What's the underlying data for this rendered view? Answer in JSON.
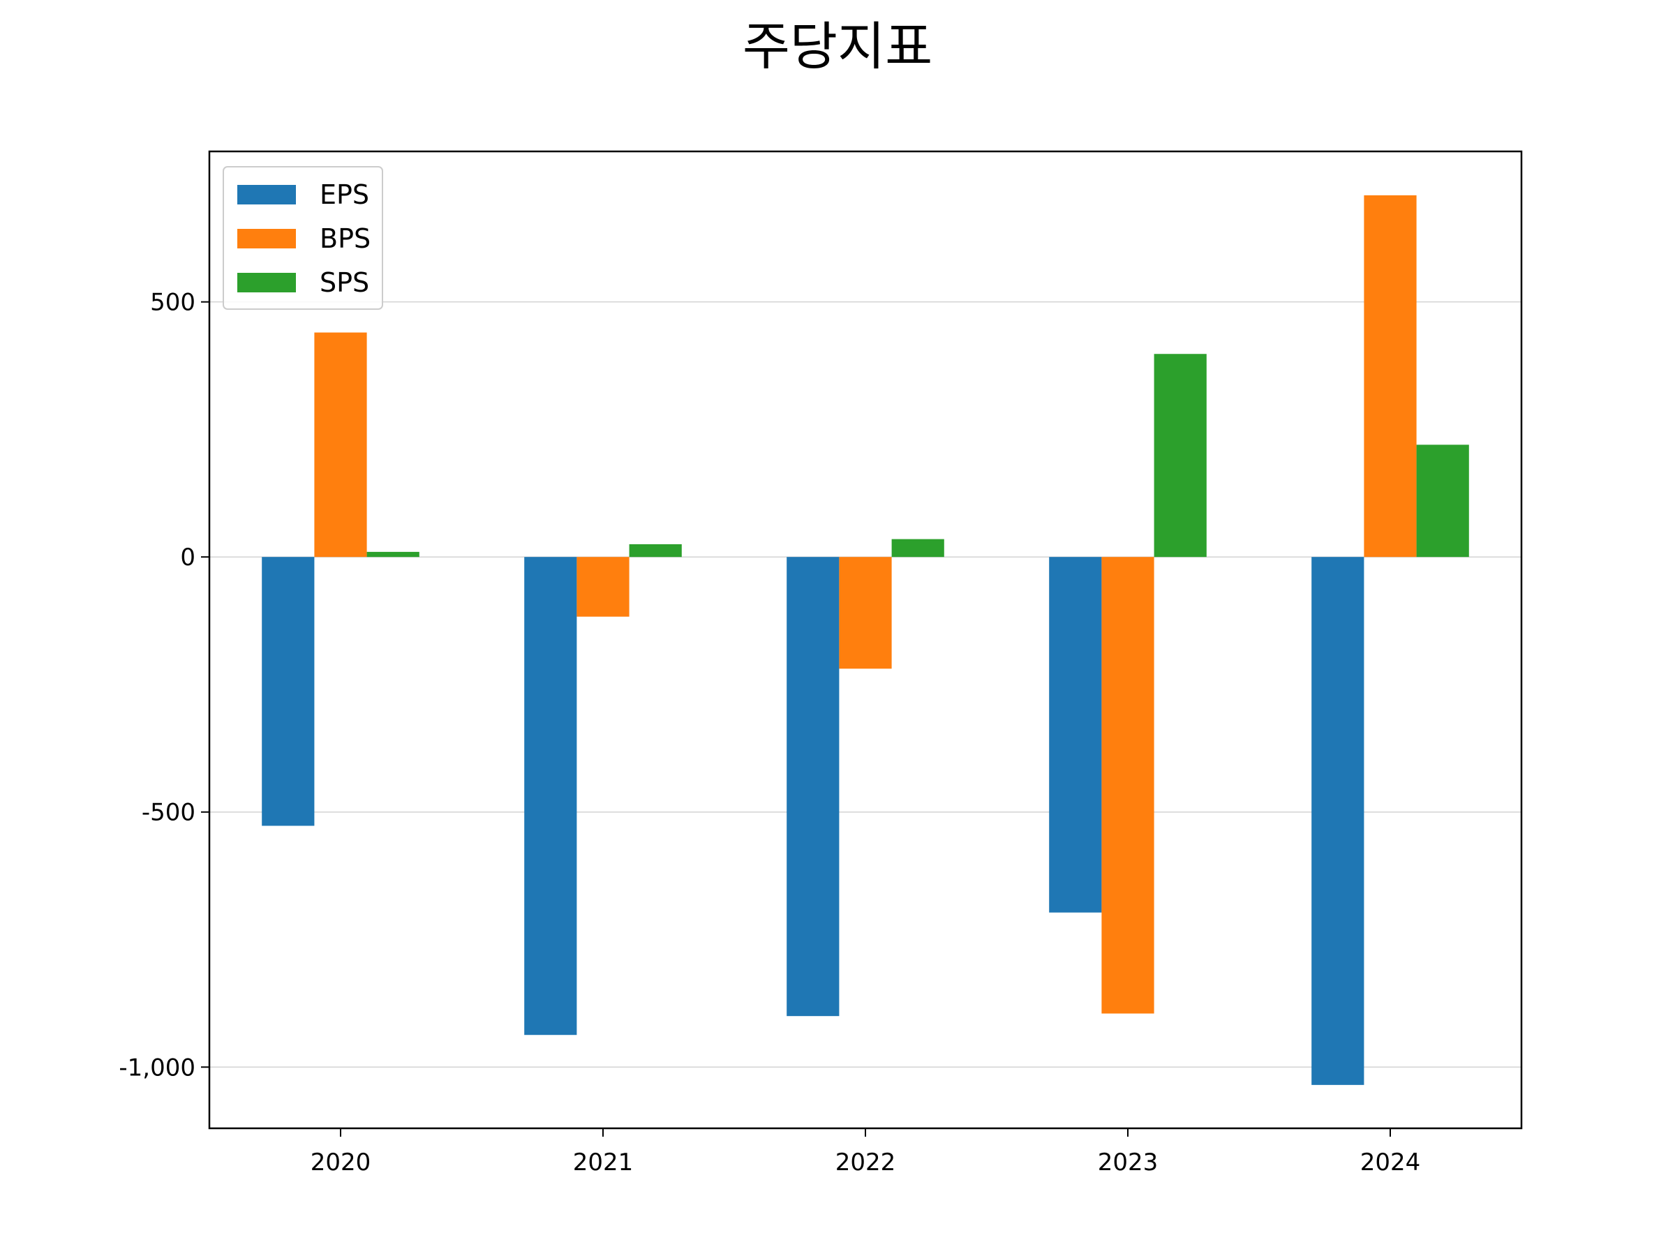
{
  "chart_data": {
    "type": "bar",
    "title": "주당지표",
    "xlabel": "",
    "ylabel": "",
    "categories": [
      "2020",
      "2021",
      "2022",
      "2023",
      "2024"
    ],
    "series": [
      {
        "name": "EPS",
        "color": "#1f77b4",
        "values": [
          -527,
          -937,
          -900,
          -697,
          -1035
        ]
      },
      {
        "name": "BPS",
        "color": "#ff7f0e",
        "values": [
          440,
          -117,
          -219,
          -895,
          709
        ]
      },
      {
        "name": "SPS",
        "color": "#2ca02c",
        "values": [
          10,
          25,
          35,
          398,
          220
        ]
      }
    ],
    "yticks": [
      500,
      0,
      -500,
      -1000
    ],
    "ytick_labels": [
      "500",
      "0",
      "-500",
      "-1,000"
    ],
    "ylim": [
      -1120,
      795
    ],
    "grid": "horizontal",
    "legend_position": "top-left"
  }
}
